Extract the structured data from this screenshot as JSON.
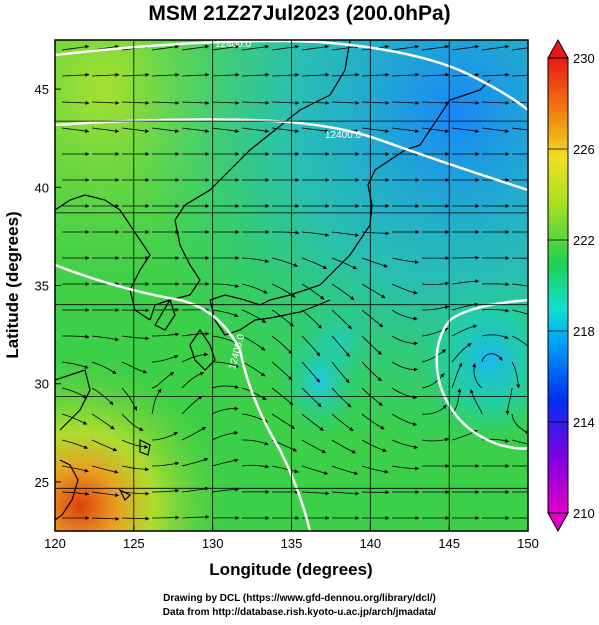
{
  "title": "MSM 21Z27Jul2023 (200.0hPa)",
  "chart_data": {
    "type": "heatmap",
    "title": "MSM 21Z27Jul2023 (200.0hPa)",
    "xlabel": "Longitude (degrees)",
    "ylabel": "Latitude  (degrees)",
    "xlim": [
      120,
      150
    ],
    "ylim": [
      22.5,
      47.5
    ],
    "x_ticks": [
      "120",
      "125",
      "130",
      "135",
      "140",
      "145",
      "150"
    ],
    "y_ticks": [
      "25",
      "30",
      "35",
      "40",
      "45"
    ],
    "colorbar": {
      "ticks": [
        "210",
        "214",
        "218",
        "222",
        "226",
        "230"
      ],
      "min": 210,
      "max": 230
    },
    "contour_labels": [
      "12400.0",
      "12400.0",
      "12400.0"
    ],
    "overlays": [
      "streamlines",
      "coastlines",
      "geopotential height contours"
    ]
  },
  "colors": {
    "cold": "#d400d4",
    "cool": "#0050ff",
    "mid": "#20d060",
    "warm": "#e0e020",
    "hot": "#e02020"
  },
  "credits": {
    "line1": "Drawing by DCL (https://www.gfd-dennou.org/library/dcl/)",
    "line2": "Data from http://database.rish.kyoto-u.ac.jp/arch/jmadata/"
  }
}
